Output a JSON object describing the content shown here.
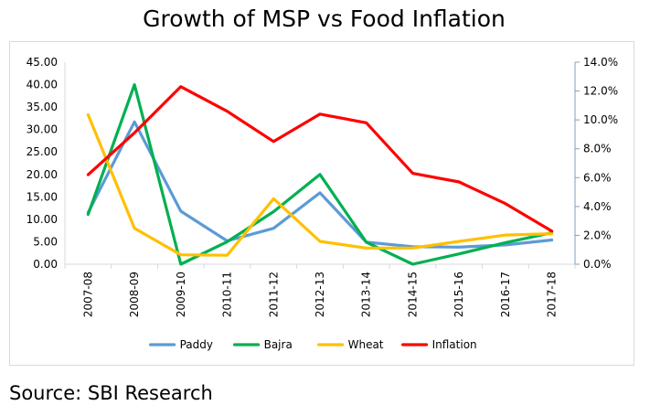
{
  "title": "Growth of MSP vs Food Inflation",
  "source": "Source: SBI Research",
  "chart_data": {
    "type": "line",
    "title": "Growth of MSP vs Food Inflation",
    "xlabel": "",
    "ylabel": "",
    "categories": [
      "2007-08",
      "2008-09",
      "2009-10",
      "2010-11",
      "2011-12",
      "2012-13",
      "2013-14",
      "2014-15",
      "2015-16",
      "2016-17",
      "2017-18"
    ],
    "ylim": [
      0,
      45
    ],
    "y2lim": [
      0,
      14
    ],
    "y_ticks": [
      "0.00",
      "5.00",
      "10.00",
      "15.00",
      "20.00",
      "25.00",
      "30.00",
      "35.00",
      "40.00",
      "45.00"
    ],
    "y2_ticks": [
      "0.0%",
      "2.0%",
      "4.0%",
      "6.0%",
      "8.0%",
      "10.0%",
      "12.0%",
      "14.0%"
    ],
    "grid": false,
    "legend_position": "bottom",
    "series": [
      {
        "name": "Paddy",
        "color": "#5b9bd5",
        "axis": "left",
        "values": [
          11.5,
          31.7,
          11.8,
          5.2,
          8.0,
          15.9,
          4.9,
          3.9,
          3.8,
          4.3,
          5.4
        ]
      },
      {
        "name": "Bajra",
        "color": "#00b050",
        "axis": "left",
        "values": [
          11.1,
          40.0,
          0.0,
          5.0,
          11.7,
          20.0,
          4.9,
          0.0,
          2.3,
          4.8,
          7.0
        ]
      },
      {
        "name": "Wheat",
        "color": "#ffc000",
        "axis": "left",
        "values": [
          33.3,
          8.0,
          2.1,
          2.0,
          14.6,
          5.1,
          3.6,
          3.6,
          5.1,
          6.5,
          6.8
        ]
      },
      {
        "name": "Inflation",
        "color": "#ff0000",
        "axis": "right",
        "values": [
          6.2,
          9.1,
          12.3,
          10.6,
          8.5,
          10.4,
          9.8,
          6.3,
          5.7,
          4.2,
          2.3
        ]
      }
    ]
  }
}
